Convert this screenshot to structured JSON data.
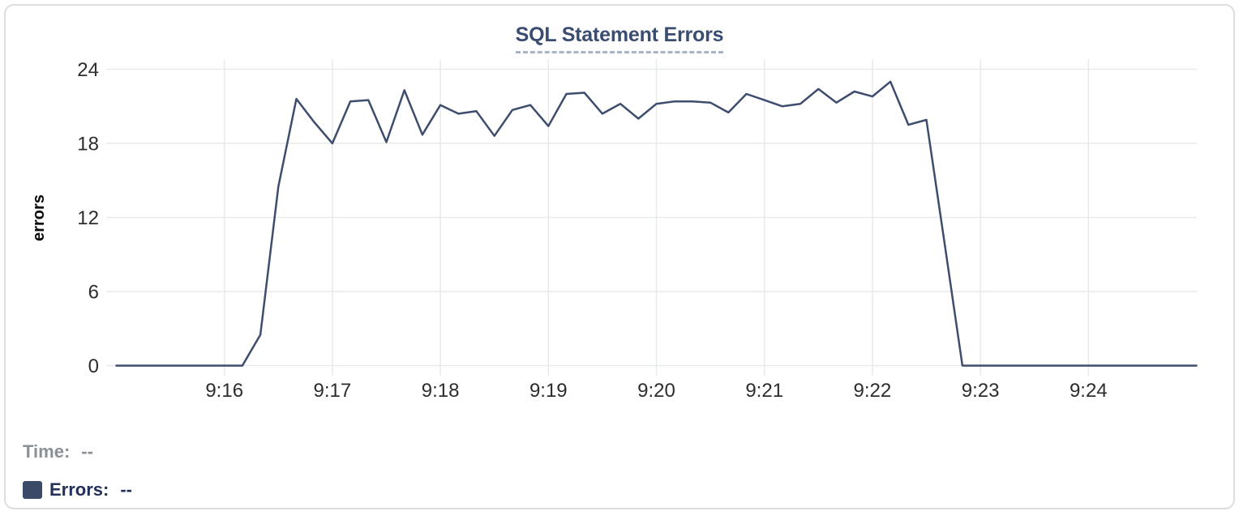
{
  "card": {
    "title": "SQL Statement Errors"
  },
  "chart_data": {
    "type": "line",
    "title": "SQL Statement Errors",
    "xlabel": "",
    "ylabel": "errors",
    "ylim": [
      0,
      24
    ],
    "y_ticks": [
      0,
      6,
      12,
      18,
      24
    ],
    "x_tick_labels": [
      "9:16",
      "9:17",
      "9:18",
      "9:19",
      "9:20",
      "9:21",
      "9:22",
      "9:23",
      "9:24"
    ],
    "x_range": [
      "9:15:00",
      "9:25:00"
    ],
    "sample_interval_seconds": 10,
    "grid": true,
    "legend_position": "bottom-left",
    "series": [
      {
        "name": "Errors",
        "start_time": "9:15:00",
        "values": [
          0,
          0,
          0,
          0,
          0,
          0,
          0,
          0,
          2.5,
          14.5,
          21.6,
          19.7,
          18,
          21.4,
          21.5,
          18.1,
          22.3,
          18.7,
          21.1,
          20.4,
          20.6,
          18.6,
          20.7,
          21.1,
          19.4,
          22,
          22.1,
          20.4,
          21.2,
          20,
          21.2,
          21.4,
          21.4,
          21.3,
          20.5,
          22,
          21.5,
          21,
          21.2,
          22.4,
          21.3,
          22.2,
          21.8,
          23,
          19.5,
          19.9,
          10,
          0,
          0,
          0,
          0,
          0,
          0,
          0,
          0,
          0,
          0,
          0,
          0,
          0,
          0
        ]
      }
    ]
  },
  "footer": {
    "time_label": "Time:",
    "time_value": "--",
    "errors_label": "Errors:",
    "errors_value": "--"
  },
  "colors": {
    "line": "#3e4d6e",
    "legend_swatch": "#3b4a66",
    "grid": "#e8e9ec",
    "tick_text": "#2d2d2f",
    "title_text": "#3a4c70",
    "title_underline": "#a9b3c8",
    "muted_text": "#8b9096",
    "navy_text": "#22305a",
    "card_border": "#dcdde1"
  }
}
